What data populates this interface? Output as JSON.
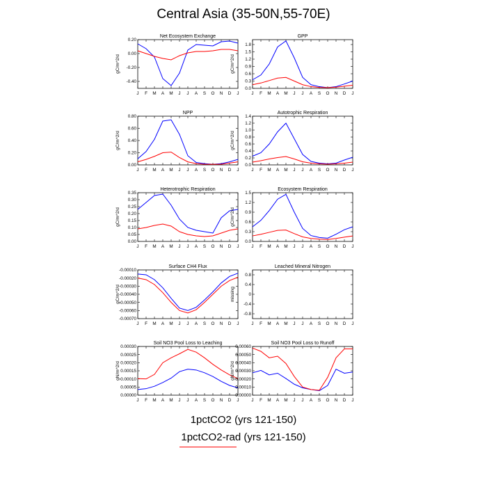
{
  "title": "Central Asia (35-50N,55-70E)",
  "legend": {
    "entries": [
      "1pctCO2 (yrs 121-150)",
      "1pctCO2-rad (yrs 121-150)"
    ],
    "colors": [
      "#0000ff",
      "#ff0000"
    ]
  },
  "chart_data": [
    {
      "type": "line",
      "title": "Net Ecosystem Exchange",
      "ylabel": "gC/m^2/d",
      "categories": [
        "J",
        "F",
        "M",
        "A",
        "M",
        "J",
        "J",
        "A",
        "S",
        "O",
        "N",
        "D",
        "J"
      ],
      "ylim": [
        -0.5,
        0.2
      ],
      "yticks": [
        0.2,
        0.0,
        -0.2,
        -0.4
      ],
      "ytick_labels": [
        "0.20",
        "0.00",
        "-0.20",
        "-0.40"
      ],
      "series": [
        {
          "color": "#0000ff",
          "values": [
            0.14,
            0.07,
            -0.05,
            -0.36,
            -0.46,
            -0.28,
            0.05,
            0.13,
            0.12,
            0.11,
            0.17,
            0.18,
            0.15
          ]
        },
        {
          "color": "#ff0000",
          "values": [
            0.04,
            0.0,
            -0.04,
            -0.07,
            -0.09,
            -0.03,
            0.01,
            0.03,
            0.03,
            0.04,
            0.06,
            0.06,
            0.04
          ]
        }
      ]
    },
    {
      "type": "line",
      "title": "GPP",
      "ylabel": "gC/m^2/d",
      "categories": [
        "J",
        "F",
        "M",
        "A",
        "M",
        "J",
        "J",
        "A",
        "S",
        "O",
        "N",
        "D",
        "J"
      ],
      "ylim": [
        0.0,
        2.0
      ],
      "yticks": [
        0.0,
        0.3,
        0.6,
        0.9,
        1.2,
        1.5,
        1.8
      ],
      "ytick_labels": [
        "0.0",
        "0.3",
        "0.6",
        "0.9",
        "1.2",
        "1.5",
        "1.8"
      ],
      "series": [
        {
          "color": "#0000ff",
          "values": [
            0.35,
            0.55,
            1.0,
            1.7,
            1.95,
            1.25,
            0.45,
            0.15,
            0.07,
            0.03,
            0.07,
            0.18,
            0.3
          ]
        },
        {
          "color": "#ff0000",
          "values": [
            0.15,
            0.22,
            0.32,
            0.42,
            0.45,
            0.3,
            0.15,
            0.07,
            0.04,
            0.03,
            0.05,
            0.09,
            0.13
          ]
        }
      ]
    },
    {
      "type": "line",
      "title": "NPP",
      "ylabel": "gC/m^2/d",
      "categories": [
        "J",
        "F",
        "M",
        "A",
        "M",
        "J",
        "J",
        "A",
        "S",
        "O",
        "N",
        "D",
        "J"
      ],
      "ylim": [
        0.0,
        0.8
      ],
      "yticks": [
        0.0,
        0.2,
        0.4,
        0.6,
        0.8
      ],
      "ytick_labels": [
        "0.00",
        "0.20",
        "0.40",
        "0.60",
        "0.80"
      ],
      "series": [
        {
          "color": "#0000ff",
          "values": [
            0.1,
            0.22,
            0.42,
            0.72,
            0.74,
            0.5,
            0.15,
            0.04,
            0.02,
            0.01,
            0.02,
            0.05,
            0.09
          ]
        },
        {
          "color": "#ff0000",
          "values": [
            0.05,
            0.09,
            0.14,
            0.2,
            0.21,
            0.12,
            0.05,
            0.02,
            0.01,
            0.01,
            0.01,
            0.03,
            0.05
          ]
        }
      ]
    },
    {
      "type": "line",
      "title": "Autotrophic Respiration",
      "ylabel": "gC/m^2/d",
      "categories": [
        "J",
        "F",
        "M",
        "A",
        "M",
        "J",
        "J",
        "A",
        "S",
        "O",
        "N",
        "D",
        "J"
      ],
      "ylim": [
        0.0,
        1.4
      ],
      "yticks": [
        0.0,
        0.2,
        0.4,
        0.6,
        0.8,
        1.0,
        1.2,
        1.4
      ],
      "ytick_labels": [
        "0.0",
        "0.2",
        "0.4",
        "0.6",
        "0.8",
        "1.0",
        "1.2",
        "1.4"
      ],
      "series": [
        {
          "color": "#0000ff",
          "values": [
            0.25,
            0.35,
            0.6,
            0.95,
            1.2,
            0.75,
            0.3,
            0.1,
            0.05,
            0.03,
            0.05,
            0.14,
            0.22
          ]
        },
        {
          "color": "#ff0000",
          "values": [
            0.08,
            0.12,
            0.17,
            0.21,
            0.24,
            0.17,
            0.09,
            0.05,
            0.03,
            0.02,
            0.03,
            0.05,
            0.08
          ]
        }
      ]
    },
    {
      "type": "line",
      "title": "Heterotrophic Respiration",
      "ylabel": "gC/m^2/d",
      "categories": [
        "J",
        "F",
        "M",
        "A",
        "M",
        "J",
        "J",
        "A",
        "S",
        "O",
        "N",
        "D",
        "J"
      ],
      "ylim": [
        0.0,
        0.35
      ],
      "yticks": [
        0.0,
        0.05,
        0.1,
        0.15,
        0.2,
        0.25,
        0.3,
        0.35
      ],
      "ytick_labels": [
        "0.00",
        "0.05",
        "0.10",
        "0.15",
        "0.20",
        "0.25",
        "0.30",
        "0.35"
      ],
      "series": [
        {
          "color": "#0000ff",
          "values": [
            0.23,
            0.28,
            0.33,
            0.34,
            0.26,
            0.16,
            0.1,
            0.08,
            0.07,
            0.06,
            0.17,
            0.22,
            0.23
          ]
        },
        {
          "color": "#ff0000",
          "values": [
            0.09,
            0.1,
            0.115,
            0.125,
            0.11,
            0.07,
            0.05,
            0.04,
            0.035,
            0.04,
            0.06,
            0.08,
            0.09
          ]
        }
      ]
    },
    {
      "type": "line",
      "title": "Ecosystem Respiration",
      "ylabel": "gC/m^2/d",
      "categories": [
        "J",
        "F",
        "M",
        "A",
        "M",
        "J",
        "J",
        "A",
        "S",
        "O",
        "N",
        "D",
        "J"
      ],
      "ylim": [
        0.0,
        1.5
      ],
      "yticks": [
        0.0,
        0.3,
        0.6,
        0.9,
        1.2,
        1.5
      ],
      "ytick_labels": [
        "0.0",
        "0.3",
        "0.6",
        "0.9",
        "1.2",
        "1.5"
      ],
      "series": [
        {
          "color": "#0000ff",
          "values": [
            0.45,
            0.65,
            0.95,
            1.3,
            1.45,
            0.9,
            0.4,
            0.18,
            0.12,
            0.1,
            0.22,
            0.36,
            0.45
          ]
        },
        {
          "color": "#ff0000",
          "values": [
            0.17,
            0.22,
            0.28,
            0.34,
            0.35,
            0.24,
            0.14,
            0.09,
            0.07,
            0.06,
            0.09,
            0.13,
            0.17
          ]
        }
      ]
    },
    {
      "type": "line",
      "title": "Surface CH4 Flux",
      "ylabel": "gC/m^2/d",
      "categories": [
        "J",
        "F",
        "M",
        "A",
        "M",
        "J",
        "J",
        "A",
        "S",
        "O",
        "N",
        "D",
        "J"
      ],
      "ylim": [
        -0.0007,
        -0.0001
      ],
      "yticks": [
        -0.0001,
        -0.0002,
        -0.0003,
        -0.0004,
        -0.0005,
        -0.0006,
        -0.0007
      ],
      "ytick_labels": [
        "-0.00010",
        "-0.00020",
        "-0.00030",
        "-0.00040",
        "-0.00050",
        "-0.00060",
        "-0.00070"
      ],
      "series": [
        {
          "color": "#0000ff",
          "values": [
            -0.00015,
            -0.00016,
            -0.00022,
            -0.00032,
            -0.00045,
            -0.00057,
            -0.0006,
            -0.00056,
            -0.00047,
            -0.00037,
            -0.00026,
            -0.00018,
            -0.00014
          ]
        },
        {
          "color": "#ff0000",
          "values": [
            -0.0002,
            -0.00022,
            -0.00028,
            -0.00038,
            -0.0005,
            -0.0006,
            -0.00063,
            -0.00059,
            -0.0005,
            -0.0004,
            -0.0003,
            -0.00023,
            -0.00019
          ]
        }
      ]
    },
    {
      "type": "line",
      "title": "Leached Mineral Nitrogen",
      "ylabel": "missing",
      "categories": [
        "J",
        "F",
        "M",
        "A",
        "M",
        "J",
        "J",
        "A",
        "S",
        "O",
        "N",
        "D",
        "J"
      ],
      "ylim": [
        -1.0,
        1.0
      ],
      "yticks": [
        0.8,
        0.4,
        0.0,
        -0.4,
        -0.8
      ],
      "ytick_labels": [
        "0.8",
        "0.4",
        "0",
        "-0.4",
        "-0.8"
      ],
      "series": []
    },
    {
      "type": "line",
      "title": "Soil NO3 Pool Loss to Leaching",
      "ylabel": "gN/m^2/d",
      "categories": [
        "J",
        "F",
        "M",
        "A",
        "M",
        "J",
        "J",
        "A",
        "S",
        "O",
        "N",
        "D",
        "J"
      ],
      "ylim": [
        0.0,
        0.0003
      ],
      "yticks": [
        0.0,
        5e-05,
        0.0001,
        0.00015,
        0.0002,
        0.00025,
        0.0003
      ],
      "ytick_labels": [
        "0.00000",
        "0.00005",
        "0.00010",
        "0.00015",
        "0.00020",
        "0.00025",
        "0.00030"
      ],
      "series": [
        {
          "color": "#0000ff",
          "values": [
            3.5e-05,
            4e-05,
            5.5e-05,
            7.8e-05,
            0.000105,
            0.000145,
            0.00016,
            0.000155,
            0.000138,
            0.000115,
            8.5e-05,
            6e-05,
            4.5e-05
          ]
        },
        {
          "color": "#ff0000",
          "values": [
            0.000102,
            0.0001,
            0.000128,
            0.0002,
            0.00023,
            0.000255,
            0.000282,
            0.000265,
            0.00023,
            0.00019,
            0.000155,
            0.000125,
            0.000102
          ]
        }
      ]
    },
    {
      "type": "line",
      "title": "Soil NO3 Pool Loss to Runoff",
      "ylabel": "gN/m^2/d",
      "categories": [
        "J",
        "F",
        "M",
        "A",
        "M",
        "J",
        "J",
        "A",
        "S",
        "O",
        "N",
        "D",
        "J"
      ],
      "ylim": [
        0.0,
        0.0006
      ],
      "yticks": [
        0.0,
        0.0001,
        0.0002,
        0.0003,
        0.0004,
        0.0005,
        0.0006
      ],
      "ytick_labels": [
        "0.00000",
        "0.00010",
        "0.00020",
        "0.00030",
        "0.00040",
        "0.00050",
        "0.00060"
      ],
      "series": [
        {
          "color": "#0000ff",
          "values": [
            0.000275,
            0.000305,
            0.00025,
            0.00027,
            0.000205,
            0.000135,
            9e-05,
            7e-05,
            5.5e-05,
            0.00012,
            0.00032,
            0.00027,
            0.000285
          ]
        },
        {
          "color": "#ff0000",
          "values": [
            0.00058,
            0.00054,
            0.00046,
            0.00048,
            0.00039,
            0.00023,
            0.0001,
            7e-05,
            6e-05,
            0.00022,
            0.00046,
            0.00057,
            0.00057
          ]
        }
      ]
    }
  ]
}
